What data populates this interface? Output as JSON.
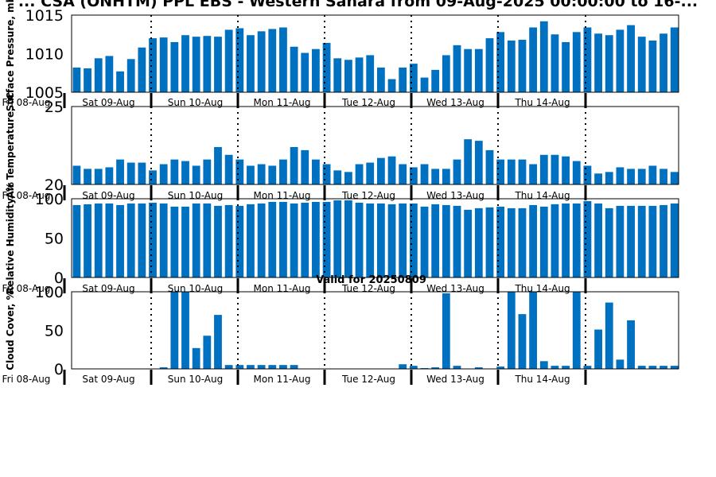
{
  "title": "... CSA (ONHTM) PPL EBS - Western Sahara from 09-Aug-2025 00:00:00 to 16-...",
  "subtitle": "Valid for 20250809",
  "colors": {
    "bar": "#0070C0",
    "axis": "#000000",
    "day_line": "#000000"
  },
  "chart_data": [
    {
      "type": "bar",
      "ylabel": "Surface Pressure, mb",
      "ylim": [
        1005,
        1015
      ],
      "yticks": [
        1005,
        1010,
        1015
      ],
      "grid": false,
      "day_labels": [
        "Fri 08-Aug",
        "Sat 09-Aug",
        "Sun 10-Aug",
        "Mon 11-Aug",
        "Tue 12-Aug",
        "Wed 13-Aug",
        "Thu 14-Aug"
      ],
      "values": [
        1008.2,
        1008.1,
        1009.4,
        1009.7,
        1007.7,
        1009.3,
        1010.8,
        1012.0,
        1012.1,
        1011.5,
        1012.4,
        1012.2,
        1012.3,
        1012.2,
        1013.1,
        1013.3,
        1012.4,
        1012.9,
        1013.2,
        1013.4,
        1010.9,
        1010.1,
        1010.6,
        1011.4,
        1009.4,
        1009.2,
        1009.5,
        1009.8,
        1008.2,
        1006.7,
        1008.2,
        1008.7,
        1006.9,
        1007.9,
        1009.8,
        1011.1,
        1010.6,
        1010.6,
        1012.0,
        1012.8,
        1011.7,
        1011.8,
        1013.4,
        1014.2,
        1012.5,
        1011.5,
        1012.8,
        1013.4,
        1012.6,
        1012.4,
        1013.1,
        1013.7,
        1012.2,
        1011.7,
        1012.6,
        1013.4
      ]
    },
    {
      "type": "bar",
      "ylabel": "Air Temperature, °C",
      "ylim": [
        20,
        25
      ],
      "yticks": [
        20,
        25
      ],
      "grid": false,
      "day_labels": [
        "Fri 08-Aug",
        "Sat 09-Aug",
        "Sun 10-Aug",
        "Mon 11-Aug",
        "Tue 12-Aug",
        "Wed 13-Aug",
        "Thu 14-Aug"
      ],
      "values": [
        21.2,
        21.0,
        21.0,
        21.1,
        21.6,
        21.4,
        21.4,
        20.9,
        21.3,
        21.6,
        21.5,
        21.2,
        21.6,
        22.4,
        21.9,
        21.6,
        21.2,
        21.3,
        21.2,
        21.6,
        22.4,
        22.2,
        21.6,
        21.3,
        20.9,
        20.8,
        21.3,
        21.4,
        21.7,
        21.8,
        21.3,
        21.1,
        21.3,
        21.0,
        21.0,
        21.6,
        22.9,
        22.8,
        22.2,
        21.6,
        21.6,
        21.6,
        21.3,
        21.9,
        21.9,
        21.8,
        21.5,
        21.2,
        20.7,
        20.8,
        21.1,
        21.0,
        21.0,
        21.2,
        21.0,
        20.8
      ]
    },
    {
      "type": "bar",
      "ylabel": "Relative Humidity, %",
      "ylim": [
        0,
        100
      ],
      "yticks": [
        0,
        50,
        100
      ],
      "grid": false,
      "day_labels": [
        "Fri 08-Aug",
        "Sat 09-Aug",
        "Sun 10-Aug",
        "Mon 11-Aug",
        "Tue 12-Aug",
        "Wed 13-Aug",
        "Thu 14-Aug"
      ],
      "values": [
        92,
        93,
        94,
        94,
        92,
        94,
        94,
        95,
        94,
        90,
        90,
        94,
        94,
        91,
        92,
        91,
        93,
        94,
        96,
        96,
        94,
        95,
        96,
        96,
        98,
        98,
        95,
        94,
        94,
        93,
        94,
        94,
        90,
        93,
        92,
        91,
        86,
        88,
        89,
        90,
        88,
        88,
        92,
        90,
        93,
        94,
        94,
        97,
        94,
        88,
        91,
        91,
        91,
        91,
        92,
        94
      ]
    },
    {
      "type": "bar",
      "ylabel": "Cloud Cover, %",
      "ylim": [
        0,
        100
      ],
      "yticks": [
        0,
        50,
        100
      ],
      "grid": false,
      "day_labels": [
        "Fri 08-Aug",
        "Sat 09-Aug",
        "Sun 10-Aug",
        "Mon 11-Aug",
        "Tue 12-Aug",
        "Wed 13-Aug",
        "Thu 14-Aug"
      ],
      "values": [
        0,
        0,
        0,
        0,
        0,
        0,
        0,
        0,
        2,
        100,
        100,
        27,
        43,
        70,
        5,
        5,
        5,
        5,
        5,
        5,
        5,
        0,
        0,
        0,
        0,
        0,
        0,
        0,
        0,
        0,
        6,
        4,
        1,
        2,
        98,
        4,
        0,
        2,
        0,
        3,
        100,
        71,
        100,
        10,
        4,
        4,
        100,
        4,
        51,
        86,
        12,
        63,
        4,
        4,
        4,
        4
      ]
    }
  ]
}
